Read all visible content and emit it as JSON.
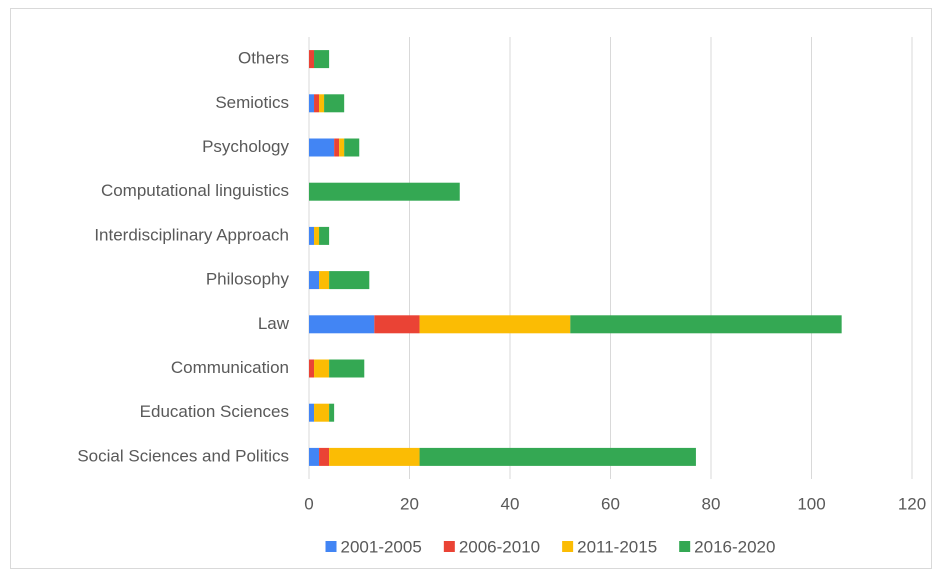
{
  "chart_data": {
    "type": "bar",
    "orientation": "horizontal",
    "stacked": true,
    "categories": [
      "Others",
      "Semiotics",
      "Psychology",
      "Computational linguistics",
      "Interdisciplinary Approach",
      "Philosophy",
      "Law",
      "Communication",
      "Education Sciences",
      "Social Sciences and Politics"
    ],
    "series": [
      {
        "name": "2001-2005",
        "color": "#4285f4",
        "values": [
          0,
          1,
          5,
          0,
          1,
          2,
          13,
          0,
          1,
          2
        ]
      },
      {
        "name": "2006-2010",
        "color": "#ea4335",
        "values": [
          1,
          1,
          1,
          0,
          0,
          0,
          9,
          1,
          0,
          2
        ]
      },
      {
        "name": "2011-2015",
        "color": "#fbbc04",
        "values": [
          0,
          1,
          1,
          0,
          1,
          2,
          30,
          3,
          3,
          18
        ]
      },
      {
        "name": "2016-2020",
        "color": "#34a853",
        "values": [
          3,
          4,
          3,
          30,
          2,
          8,
          54,
          7,
          1,
          55
        ]
      }
    ],
    "xlim": [
      0,
      120
    ],
    "xticks": [
      0,
      20,
      40,
      60,
      80,
      100,
      120
    ],
    "grid": true,
    "legend": "bottom"
  }
}
